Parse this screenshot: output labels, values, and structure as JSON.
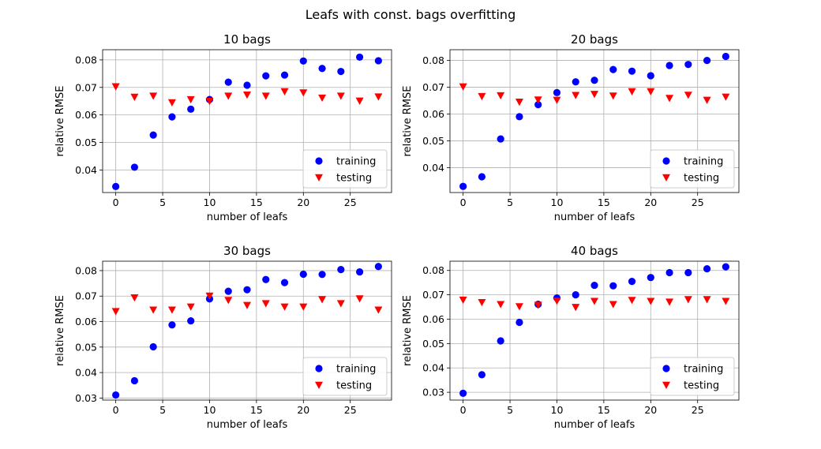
{
  "suptitle": "Leafs with const. bags overfitting",
  "colors": {
    "training": "#0000ff",
    "testing": "#ff0000",
    "grid": "#b0b0b0"
  },
  "chart_data": [
    {
      "type": "scatter",
      "title": "10 bags",
      "xlabel": "number of leafs",
      "ylabel": "relative RMSE",
      "grid": true,
      "legend_position": "lower-right",
      "xlim": [
        -1.4,
        29.4
      ],
      "ylim": [
        0.0318,
        0.0837
      ],
      "xticks": [
        0,
        5,
        10,
        15,
        20,
        25
      ],
      "yticks": [
        0.04,
        0.05,
        0.06,
        0.07,
        0.08
      ],
      "x": [
        0,
        2,
        4,
        6,
        8,
        10,
        12,
        14,
        16,
        18,
        20,
        22,
        24,
        26,
        28
      ],
      "series": [
        {
          "name": "training",
          "marker": "circle",
          "values": [
            0.034,
            0.041,
            0.0527,
            0.0593,
            0.0621,
            0.0656,
            0.0719,
            0.0708,
            0.0742,
            0.0745,
            0.0796,
            0.0769,
            0.0758,
            0.081,
            0.0797
          ]
        },
        {
          "name": "testing",
          "marker": "triangle-down",
          "values": [
            0.0703,
            0.0665,
            0.0669,
            0.0645,
            0.0656,
            0.065,
            0.0669,
            0.0673,
            0.0669,
            0.0685,
            0.0681,
            0.0662,
            0.0669,
            0.0651,
            0.0666
          ]
        }
      ]
    },
    {
      "type": "scatter",
      "title": "20 bags",
      "xlabel": "number of leafs",
      "ylabel": "relative RMSE",
      "grid": true,
      "legend_position": "lower-right",
      "xlim": [
        -1.4,
        29.4
      ],
      "ylim": [
        0.0307,
        0.084
      ],
      "xticks": [
        0,
        5,
        10,
        15,
        20,
        25
      ],
      "yticks": [
        0.04,
        0.05,
        0.06,
        0.07,
        0.08
      ],
      "x": [
        0,
        2,
        4,
        6,
        8,
        10,
        12,
        14,
        16,
        18,
        20,
        22,
        24,
        26,
        28
      ],
      "series": [
        {
          "name": "training",
          "marker": "circle",
          "values": [
            0.033,
            0.0366,
            0.0507,
            0.059,
            0.0635,
            0.068,
            0.072,
            0.0726,
            0.0766,
            0.076,
            0.0743,
            0.0781,
            0.0785,
            0.08,
            0.0815
          ]
        },
        {
          "name": "testing",
          "marker": "triangle-down",
          "values": [
            0.0702,
            0.0666,
            0.0669,
            0.0645,
            0.0653,
            0.0652,
            0.067,
            0.0674,
            0.0668,
            0.0684,
            0.0684,
            0.0659,
            0.0671,
            0.0652,
            0.0664
          ]
        }
      ]
    },
    {
      "type": "scatter",
      "title": "30 bags",
      "xlabel": "number of leafs",
      "ylabel": "relative RMSE",
      "grid": true,
      "legend_position": "lower-right",
      "xlim": [
        -1.4,
        29.4
      ],
      "ylim": [
        0.0292,
        0.0837
      ],
      "xticks": [
        0,
        5,
        10,
        15,
        20,
        25
      ],
      "yticks": [
        0.03,
        0.04,
        0.05,
        0.06,
        0.07,
        0.08
      ],
      "x": [
        0,
        2,
        4,
        6,
        8,
        10,
        12,
        14,
        16,
        18,
        20,
        22,
        24,
        26,
        28
      ],
      "series": [
        {
          "name": "training",
          "marker": "circle",
          "values": [
            0.0312,
            0.0368,
            0.0501,
            0.0587,
            0.0603,
            0.0689,
            0.0719,
            0.0725,
            0.0765,
            0.0753,
            0.0786,
            0.0785,
            0.0804,
            0.0795,
            0.0816
          ]
        },
        {
          "name": "testing",
          "marker": "triangle-down",
          "values": [
            0.064,
            0.0694,
            0.0646,
            0.0646,
            0.0658,
            0.0701,
            0.0684,
            0.0664,
            0.0671,
            0.0658,
            0.0658,
            0.0687,
            0.0671,
            0.069,
            0.0646
          ]
        }
      ]
    },
    {
      "type": "scatter",
      "title": "40 bags",
      "xlabel": "number of leafs",
      "ylabel": "relative RMSE",
      "grid": true,
      "legend_position": "lower-right",
      "xlim": [
        -1.4,
        29.4
      ],
      "ylim": [
        0.0268,
        0.0838
      ],
      "xticks": [
        0,
        5,
        10,
        15,
        20,
        25
      ],
      "yticks": [
        0.03,
        0.04,
        0.05,
        0.06,
        0.07,
        0.08
      ],
      "x": [
        0,
        2,
        4,
        6,
        8,
        10,
        12,
        14,
        16,
        18,
        20,
        22,
        24,
        26,
        28
      ],
      "series": [
        {
          "name": "training",
          "marker": "circle",
          "values": [
            0.0296,
            0.0372,
            0.0511,
            0.0587,
            0.0661,
            0.0687,
            0.07,
            0.0739,
            0.0737,
            0.0755,
            0.0771,
            0.0791,
            0.0791,
            0.0807,
            0.0815
          ]
        },
        {
          "name": "testing",
          "marker": "triangle-down",
          "values": [
            0.0679,
            0.0669,
            0.0661,
            0.0652,
            0.0658,
            0.0675,
            0.0649,
            0.0674,
            0.0661,
            0.0678,
            0.0674,
            0.0671,
            0.0681,
            0.0681,
            0.0674
          ]
        }
      ]
    }
  ]
}
